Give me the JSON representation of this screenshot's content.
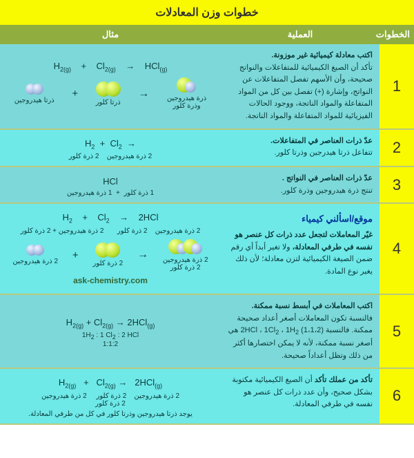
{
  "title": "خطوات وزن المعادلات",
  "headers": {
    "step": "الخطوات",
    "process": "العملية",
    "example": "مثال"
  },
  "rows": [
    {
      "num": "1",
      "proc": "<b>اكتب معادلة كيميائية  غير موزونة.</b><br>تأكد أن الصيغ الكيميائية للمتفاعلات والنواتج صحيحة، وأن الأسهم تفصل المتفاعلات عن النواتج، وإشارة (+) تفصل بين كل من المواد المتفاعلة والمواد الناتجة، ووجود الحالات الفيزيائية للمواد المتفاعلة والمواد الناتجة.",
      "eq": "H<sub>2(g)</sub> &nbsp;&nbsp;&nbsp;+&nbsp;&nbsp;&nbsp; Cl<sub>2(g)</sub> &nbsp;&nbsp;&nbsp;→&nbsp;&nbsp;&nbsp; HCl<sub>(g)</sub>",
      "mols": true,
      "lbls": [
        "ذرتا هيدروجين",
        "ذرتا كلور",
        "",
        "ذرة هيدروجين<br>وذرة كلور"
      ]
    },
    {
      "num": "2",
      "proc": "<b>عدّ ذرات العناصر في المتفاعلات.</b><br>تتفاعل ذرتا هيدرجين وذرتا كلور.",
      "eq": "H<sub>2</sub> &nbsp;+&nbsp; Cl<sub>2</sub> &nbsp;→",
      "sub": "2 ذرة هيدروجين &nbsp;&nbsp; 2 ذرة كلور"
    },
    {
      "num": "3",
      "proc": "<b>عدّ ذرات العناصر في النواتج .</b><br>تنتج ذرة هيدروجين وذرة كلور.",
      "eq": "HCl",
      "sub": "1 ذرة كلور &nbsp;+&nbsp; 1 ذرة هيدروجين"
    },
    {
      "num": "4",
      "proc": "<b>غيّر المعاملات لتجعل عدد ذرات كل عنصر هو نفسه في طرفي المعادلة،</b> ولا تغير أبداً أي رقم ضمن الصيغة الكيميائية لتزن معادلة؛ لأن ذلك يغير نوع المادة.",
      "eq": "H<sub>2</sub> &nbsp;&nbsp;&nbsp;+&nbsp;&nbsp;&nbsp; Cl<sub>2</sub> &nbsp;&nbsp;&nbsp;→&nbsp;&nbsp;&nbsp; 2HCl",
      "sub": "2 ذرة هيدروجين &nbsp;&nbsp; 2 ذرة كلور &nbsp;&nbsp;&nbsp;&nbsp;&nbsp; 2 ذرة هيدروجين + 2 ذرة كلور",
      "mols2": true,
      "site1": "موقع/اسألني كيمياء",
      "site2": "ask-chemistry.com"
    },
    {
      "num": "5",
      "proc": "<b>اكتب المعاملات في أبسط نسبة ممكنة.</b> فالنسبة تكون المعاملات أصغر أعداد صحيحة ممكنة. فالنسبة (1،1،2) 2HCl ، 1Cl<sub>2</sub> ، 1H<sub>2</sub> هي أصغر نسبة ممكنة، لأنه لا يمكن اختصارها أكثر من ذلك وتظل أعداداً صحيحة.",
      "eq": "H<sub>2(g)</sub> + Cl<sub>2(g)</sub> → 2HCl<sub>(g)</sub>",
      "sub": "1H<sub>2</sub> : 1 Cl<sub>2</sub> : 2 HCl<br>1:1:2"
    },
    {
      "num": "6",
      "proc": "<b>تأكد من عملك تأكد</b> أن الصيغ الكيميائية مكتوبة بشكل صحيح، وأن عدد ذرات كل عنصر هو نفسه في طرفي المعادلة.",
      "eq": "H<sub>2(g)</sub> &nbsp;&nbsp;+&nbsp;&nbsp; Cl<sub>2(g)</sub> →&nbsp;&nbsp; 2HCl<sub>(g)</sub>",
      "sub": "2 ذرة هيدروجين &nbsp;&nbsp; 2 ذرة كلور &nbsp;&nbsp;&nbsp; 2 ذرة هيدروجين<br>2 ذرة كلور",
      "finalCap": "يوجد ذرتا هيدروجين وذرتا كلور في كل من طرفي المعادلة."
    }
  ]
}
